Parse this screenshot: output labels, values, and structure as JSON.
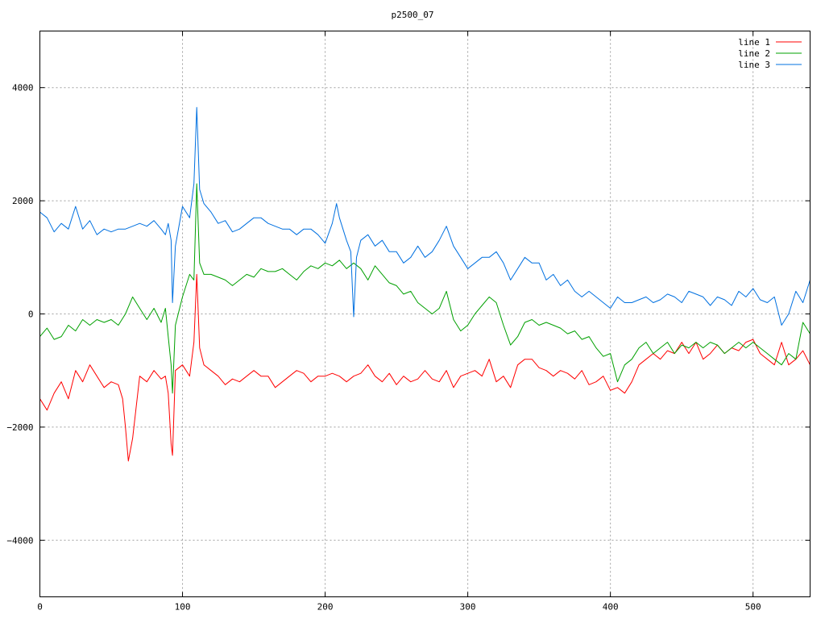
{
  "chart_data": {
    "type": "line",
    "title": "p2500_07",
    "xlabel": "",
    "ylabel": "",
    "xlim": [
      0,
      540
    ],
    "ylim": [
      -5000,
      5000
    ],
    "x_ticks": [
      0,
      100,
      200,
      300,
      400,
      500
    ],
    "y_ticks": [
      -4000,
      -2000,
      0,
      2000,
      4000
    ],
    "y_tick_labels": [
      "-4000",
      "-2000",
      "0",
      "2000",
      "4000"
    ],
    "grid": true,
    "legend_position": "top-right",
    "series": [
      {
        "name": "line 1",
        "color": "#ff0000",
        "x": [
          0,
          5,
          10,
          15,
          20,
          25,
          30,
          35,
          40,
          45,
          50,
          55,
          58,
          60,
          62,
          65,
          70,
          75,
          80,
          85,
          88,
          90,
          92,
          93,
          95,
          100,
          105,
          108,
          110,
          112,
          115,
          120,
          125,
          130,
          135,
          140,
          145,
          150,
          155,
          160,
          165,
          170,
          175,
          180,
          185,
          190,
          195,
          200,
          205,
          210,
          215,
          220,
          225,
          230,
          235,
          240,
          245,
          250,
          255,
          260,
          265,
          270,
          275,
          280,
          285,
          290,
          295,
          300,
          305,
          310,
          315,
          320,
          325,
          330,
          335,
          340,
          345,
          350,
          355,
          360,
          365,
          370,
          375,
          380,
          385,
          390,
          395,
          400,
          405,
          410,
          415,
          420,
          425,
          430,
          435,
          440,
          445,
          450,
          455,
          460,
          465,
          470,
          475,
          480,
          485,
          490,
          495,
          500,
          505,
          510,
          515,
          520,
          525,
          530,
          535,
          540
        ],
        "y": [
          -1500,
          -1700,
          -1400,
          -1200,
          -1500,
          -1000,
          -1200,
          -900,
          -1100,
          -1300,
          -1200,
          -1250,
          -1500,
          -2000,
          -2600,
          -2200,
          -1100,
          -1200,
          -1000,
          -1150,
          -1100,
          -1400,
          -2300,
          -2500,
          -1000,
          -900,
          -1100,
          -500,
          700,
          -600,
          -900,
          -1000,
          -1100,
          -1250,
          -1150,
          -1200,
          -1100,
          -1000,
          -1100,
          -1100,
          -1300,
          -1200,
          -1100,
          -1000,
          -1050,
          -1200,
          -1100,
          -1100,
          -1050,
          -1100,
          -1200,
          -1100,
          -1050,
          -900,
          -1100,
          -1200,
          -1050,
          -1250,
          -1100,
          -1200,
          -1150,
          -1000,
          -1150,
          -1200,
          -1000,
          -1300,
          -1100,
          -1050,
          -1000,
          -1100,
          -800,
          -1200,
          -1100,
          -1300,
          -900,
          -800,
          -800,
          -950,
          -1000,
          -1100,
          -1000,
          -1050,
          -1150,
          -1000,
          -1250,
          -1200,
          -1100,
          -1350,
          -1300,
          -1400,
          -1200,
          -900,
          -800,
          -700,
          -800,
          -650,
          -700,
          -500,
          -700,
          -500,
          -800,
          -700,
          -550,
          -700,
          -600,
          -650,
          -500,
          -450,
          -700,
          -800,
          -900,
          -500,
          -900,
          -800,
          -650,
          -900
        ]
      },
      {
        "name": "line 2",
        "color": "#00a000",
        "x": [
          0,
          5,
          10,
          15,
          20,
          25,
          30,
          35,
          40,
          45,
          50,
          55,
          60,
          65,
          70,
          75,
          80,
          85,
          88,
          90,
          92,
          93,
          95,
          100,
          105,
          108,
          110,
          112,
          115,
          120,
          125,
          130,
          135,
          140,
          145,
          150,
          155,
          160,
          165,
          170,
          175,
          180,
          185,
          190,
          195,
          200,
          205,
          210,
          215,
          220,
          225,
          230,
          235,
          240,
          245,
          250,
          255,
          260,
          265,
          270,
          275,
          280,
          285,
          290,
          295,
          300,
          305,
          310,
          315,
          320,
          325,
          330,
          335,
          340,
          345,
          350,
          355,
          360,
          365,
          370,
          375,
          380,
          385,
          390,
          395,
          400,
          405,
          410,
          415,
          420,
          425,
          430,
          435,
          440,
          445,
          450,
          455,
          460,
          465,
          470,
          475,
          480,
          485,
          490,
          495,
          500,
          505,
          510,
          515,
          520,
          525,
          530,
          535,
          540
        ],
        "y": [
          -400,
          -250,
          -450,
          -400,
          -200,
          -300,
          -100,
          -200,
          -100,
          -150,
          -100,
          -200,
          0,
          300,
          100,
          -100,
          100,
          -150,
          100,
          -400,
          -900,
          -1400,
          -200,
          300,
          700,
          600,
          2300,
          900,
          700,
          700,
          650,
          600,
          500,
          600,
          700,
          650,
          800,
          750,
          750,
          800,
          700,
          600,
          750,
          850,
          800,
          900,
          850,
          950,
          800,
          900,
          800,
          600,
          850,
          700,
          550,
          500,
          350,
          400,
          200,
          100,
          0,
          100,
          400,
          -100,
          -300,
          -200,
          0,
          150,
          300,
          200,
          -200,
          -550,
          -400,
          -150,
          -100,
          -200,
          -150,
          -200,
          -250,
          -350,
          -300,
          -450,
          -400,
          -600,
          -750,
          -700,
          -1200,
          -900,
          -800,
          -600,
          -500,
          -700,
          -600,
          -500,
          -700,
          -550,
          -600,
          -500,
          -600,
          -500,
          -550,
          -700,
          -600,
          -500,
          -600,
          -500,
          -600,
          -700,
          -800,
          -900,
          -700,
          -800,
          -150,
          -350
        ]
      },
      {
        "name": "line 3",
        "color": "#0070e0",
        "x": [
          0,
          5,
          10,
          15,
          20,
          25,
          30,
          35,
          40,
          45,
          50,
          55,
          60,
          65,
          70,
          75,
          80,
          85,
          88,
          90,
          92,
          93,
          95,
          100,
          105,
          108,
          110,
          112,
          115,
          120,
          125,
          130,
          135,
          140,
          145,
          150,
          155,
          160,
          165,
          170,
          175,
          180,
          185,
          190,
          195,
          200,
          205,
          208,
          210,
          215,
          218,
          220,
          222,
          225,
          230,
          235,
          240,
          245,
          250,
          255,
          260,
          265,
          270,
          275,
          280,
          285,
          290,
          295,
          300,
          305,
          310,
          315,
          320,
          325,
          330,
          335,
          340,
          345,
          350,
          355,
          360,
          365,
          370,
          375,
          380,
          385,
          390,
          395,
          400,
          405,
          410,
          415,
          420,
          425,
          430,
          435,
          440,
          445,
          450,
          455,
          460,
          465,
          470,
          475,
          480,
          485,
          490,
          495,
          500,
          505,
          510,
          515,
          520,
          525,
          530,
          535,
          540
        ],
        "y": [
          1800,
          1700,
          1450,
          1600,
          1500,
          1900,
          1500,
          1650,
          1400,
          1500,
          1450,
          1500,
          1500,
          1550,
          1600,
          1550,
          1650,
          1500,
          1400,
          1600,
          1300,
          200,
          1200,
          1900,
          1700,
          2300,
          3650,
          2200,
          1950,
          1800,
          1600,
          1650,
          1450,
          1500,
          1600,
          1700,
          1700,
          1600,
          1550,
          1500,
          1500,
          1400,
          1500,
          1500,
          1400,
          1250,
          1600,
          1950,
          1700,
          1300,
          1100,
          -50,
          1000,
          1300,
          1400,
          1200,
          1300,
          1100,
          1100,
          900,
          1000,
          1200,
          1000,
          1100,
          1300,
          1550,
          1200,
          1000,
          800,
          900,
          1000,
          1000,
          1100,
          900,
          600,
          800,
          1000,
          900,
          900,
          600,
          700,
          500,
          600,
          400,
          300,
          400,
          300,
          200,
          100,
          300,
          200,
          200,
          250,
          300,
          200,
          250,
          350,
          300,
          200,
          400,
          350,
          300,
          150,
          300,
          250,
          150,
          400,
          300,
          450,
          250,
          200,
          300,
          -200,
          0,
          400,
          200,
          600
        ]
      }
    ]
  }
}
